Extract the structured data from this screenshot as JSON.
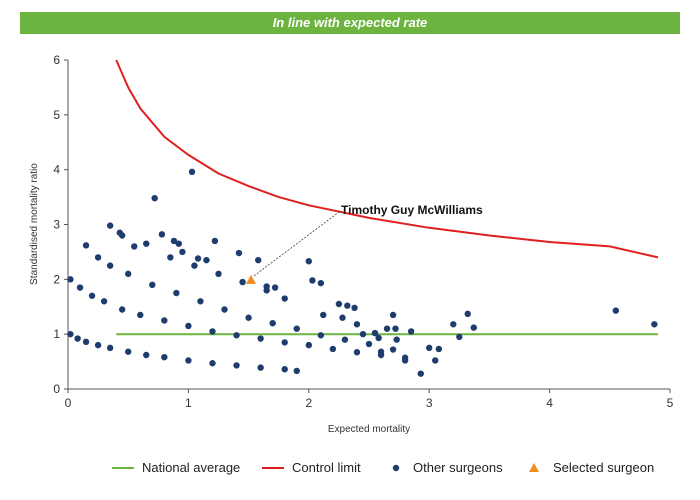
{
  "banner": {
    "text": "In line with expected rate",
    "color": "#6cb33f"
  },
  "chart_data": {
    "type": "scatter",
    "xlabel": "Expected mortality",
    "ylabel": "Standardised mortality ratio",
    "xlim": [
      0,
      5
    ],
    "ylim": [
      0,
      6
    ],
    "x_ticks": [
      "0",
      "1",
      "2",
      "3",
      "4",
      "5"
    ],
    "y_ticks": [
      "0",
      "1",
      "2",
      "3",
      "4",
      "5",
      "6"
    ],
    "grid": false,
    "legend_position": "bottom",
    "annotation": {
      "text": "Timothy Guy McWilliams",
      "target": [
        1.52,
        1.99
      ]
    },
    "lines": [
      {
        "name": "National average",
        "color": "#6cb33f",
        "points": [
          [
            0.4,
            1.0
          ],
          [
            4.9,
            1.0
          ]
        ]
      },
      {
        "name": "Control limit",
        "color": "#e02020",
        "points": [
          [
            0.4,
            6.0
          ],
          [
            0.5,
            5.5
          ],
          [
            0.6,
            5.12
          ],
          [
            0.8,
            4.6
          ],
          [
            1.0,
            4.27
          ],
          [
            1.25,
            3.93
          ],
          [
            1.5,
            3.7
          ],
          [
            1.75,
            3.5
          ],
          [
            2.0,
            3.35
          ],
          [
            2.5,
            3.12
          ],
          [
            3.0,
            2.94
          ],
          [
            3.5,
            2.8
          ],
          [
            4.0,
            2.68
          ],
          [
            4.5,
            2.6
          ],
          [
            4.9,
            2.4
          ]
        ]
      }
    ],
    "series": [
      {
        "name": "Other surgeons",
        "color": "#1f3c6e",
        "marker": "circle",
        "points": [
          [
            0.02,
            1.0
          ],
          [
            0.08,
            0.92
          ],
          [
            0.15,
            0.86
          ],
          [
            0.25,
            0.8
          ],
          [
            0.35,
            0.75
          ],
          [
            0.5,
            0.68
          ],
          [
            0.65,
            0.62
          ],
          [
            0.8,
            0.58
          ],
          [
            1.0,
            0.52
          ],
          [
            1.2,
            0.47
          ],
          [
            1.4,
            0.43
          ],
          [
            1.6,
            0.39
          ],
          [
            1.8,
            0.36
          ],
          [
            1.9,
            0.33
          ],
          [
            0.02,
            2.0
          ],
          [
            0.1,
            1.85
          ],
          [
            0.2,
            1.7
          ],
          [
            0.3,
            1.6
          ],
          [
            0.45,
            1.45
          ],
          [
            0.6,
            1.35
          ],
          [
            0.8,
            1.25
          ],
          [
            1.0,
            1.15
          ],
          [
            1.2,
            1.05
          ],
          [
            1.4,
            0.98
          ],
          [
            1.6,
            0.92
          ],
          [
            1.8,
            0.85
          ],
          [
            2.0,
            0.8
          ],
          [
            2.2,
            0.73
          ],
          [
            2.4,
            0.67
          ],
          [
            2.6,
            0.62
          ],
          [
            2.8,
            0.57
          ],
          [
            0.25,
            2.4
          ],
          [
            0.35,
            2.25
          ],
          [
            0.5,
            2.1
          ],
          [
            0.7,
            1.9
          ],
          [
            0.9,
            1.75
          ],
          [
            1.1,
            1.6
          ],
          [
            1.3,
            1.45
          ],
          [
            1.5,
            1.3
          ],
          [
            1.7,
            1.2
          ],
          [
            1.9,
            1.1
          ],
          [
            2.1,
            0.98
          ],
          [
            2.3,
            0.9
          ],
          [
            2.5,
            0.82
          ],
          [
            2.7,
            0.72
          ],
          [
            0.45,
            2.8
          ],
          [
            0.65,
            2.65
          ],
          [
            0.85,
            2.4
          ],
          [
            1.05,
            2.25
          ],
          [
            1.25,
            2.1
          ],
          [
            1.45,
            1.95
          ],
          [
            1.65,
            1.8
          ],
          [
            1.8,
            1.65
          ],
          [
            0.15,
            2.62
          ],
          [
            0.35,
            2.98
          ],
          [
            0.43,
            2.85
          ],
          [
            0.55,
            2.6
          ],
          [
            0.72,
            3.48
          ],
          [
            0.78,
            2.82
          ],
          [
            0.88,
            2.7
          ],
          [
            0.92,
            2.65
          ],
          [
            0.95,
            2.5
          ],
          [
            1.03,
            3.96
          ],
          [
            1.08,
            2.38
          ],
          [
            1.15,
            2.35
          ],
          [
            1.22,
            2.7
          ],
          [
            1.42,
            2.48
          ],
          [
            1.58,
            2.35
          ],
          [
            1.65,
            1.87
          ],
          [
            1.72,
            1.85
          ],
          [
            2.0,
            2.33
          ],
          [
            2.03,
            1.98
          ],
          [
            2.1,
            1.93
          ],
          [
            2.12,
            1.35
          ],
          [
            2.25,
            1.55
          ],
          [
            2.28,
            1.3
          ],
          [
            2.32,
            1.52
          ],
          [
            2.38,
            1.48
          ],
          [
            2.4,
            1.18
          ],
          [
            2.45,
            1.0
          ],
          [
            2.55,
            1.02
          ],
          [
            2.58,
            0.93
          ],
          [
            2.6,
            0.68
          ],
          [
            2.65,
            1.1
          ],
          [
            2.7,
            1.35
          ],
          [
            2.72,
            1.1
          ],
          [
            2.73,
            0.9
          ],
          [
            2.8,
            0.52
          ],
          [
            2.85,
            1.05
          ],
          [
            2.93,
            0.28
          ],
          [
            3.0,
            0.75
          ],
          [
            3.05,
            0.52
          ],
          [
            3.08,
            0.73
          ],
          [
            3.2,
            1.18
          ],
          [
            3.25,
            0.95
          ],
          [
            3.32,
            1.37
          ],
          [
            3.37,
            1.12
          ],
          [
            4.55,
            1.43
          ],
          [
            4.87,
            1.18
          ]
        ]
      },
      {
        "name": "Selected surgeon",
        "color": "#f08c1e",
        "marker": "triangle",
        "points": [
          [
            1.52,
            1.99
          ]
        ]
      }
    ]
  }
}
